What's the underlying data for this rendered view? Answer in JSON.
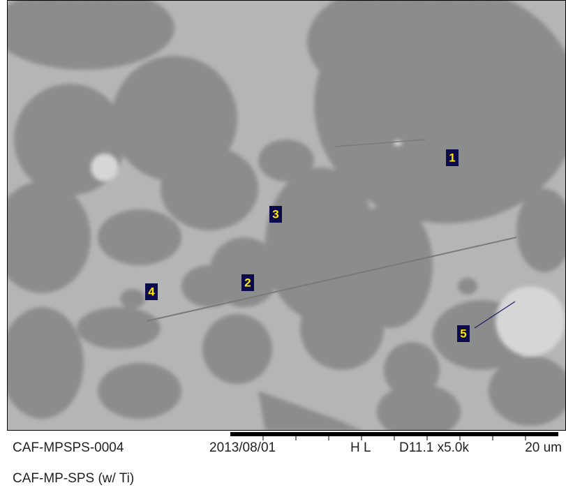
{
  "markers": [
    {
      "label": "1"
    },
    {
      "label": "2"
    },
    {
      "label": "3"
    },
    {
      "label": "4"
    },
    {
      "label": "5"
    }
  ],
  "footer": {
    "sample_id": "CAF-MPSPS-0004",
    "date": "2013/08/01",
    "mode": "H L",
    "settings": "D11.1 x5.0k",
    "scale": "20 um",
    "description": "CAF-MP-SPS (w/ Ti)"
  }
}
